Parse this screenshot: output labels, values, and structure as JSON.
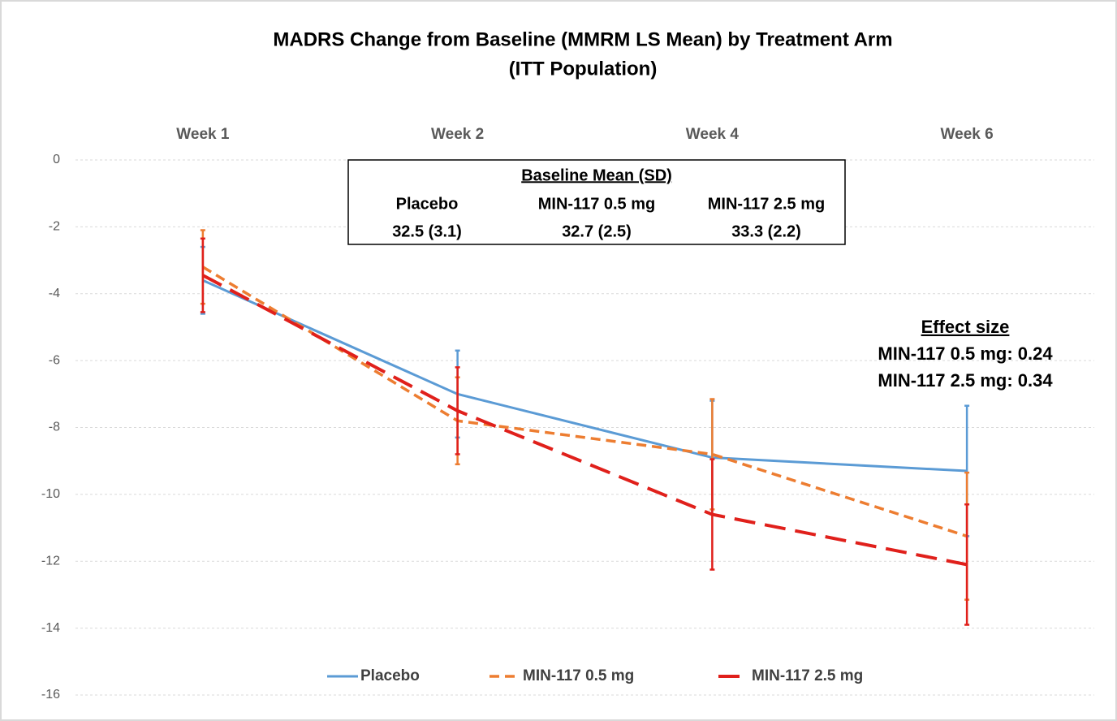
{
  "chart_data": {
    "type": "line",
    "title": "MADRS Change from Baseline (MMRM LS Mean) by Treatment Arm",
    "subtitle": "(ITT Population)",
    "categories": [
      "Week 1",
      "Week 2",
      "Week 4",
      "Week 6"
    ],
    "ylim": [
      -16,
      0
    ],
    "yticks": [
      0,
      -2,
      -4,
      -6,
      -8,
      -10,
      -12,
      -14,
      -16
    ],
    "grid": true,
    "legend": "bottom",
    "series": [
      {
        "name": "Placebo",
        "color": "#5b9bd5",
        "line_style": "solid",
        "values": [
          -3.6,
          -7.0,
          -8.9,
          -9.3
        ],
        "errors": [
          1.0,
          1.3,
          1.7,
          1.95
        ]
      },
      {
        "name": "MIN-117 0.5 mg",
        "color": "#ed7d31",
        "line_style": "dashed",
        "values": [
          -3.2,
          -7.8,
          -8.8,
          -11.25
        ],
        "errors": [
          1.1,
          1.3,
          1.65,
          1.9
        ]
      },
      {
        "name": "MIN-117 2.5 mg",
        "color": "#e0201b",
        "line_style": "long-dashed",
        "values": [
          -3.45,
          -7.5,
          -10.6,
          -12.1
        ],
        "errors": [
          1.1,
          1.3,
          1.65,
          1.8
        ]
      }
    ],
    "baseline": {
      "title": "Baseline Mean (SD)",
      "columns": [
        "Placebo",
        "MIN-117 0.5 mg",
        "MIN-117 2.5 mg"
      ],
      "values": [
        "32.5 (3.1)",
        "32.7 (2.5)",
        "33.3 (2.2)"
      ]
    },
    "effect_size": {
      "title": "Effect size",
      "lines": [
        "MIN-117 0.5 mg: 0.24",
        "MIN-117 2.5 mg: 0.34"
      ]
    }
  }
}
